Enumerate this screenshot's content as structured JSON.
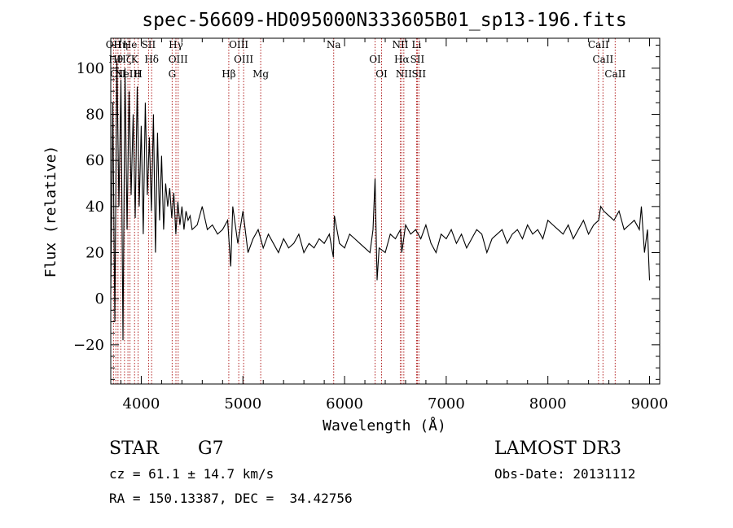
{
  "chart_data": {
    "type": "line",
    "title": "spec-56609-HD095000N333605B01_sp13-196.fits",
    "xlabel": "Wavelength (Å)",
    "ylabel": "Flux (relative)",
    "xlim": [
      3700,
      9100
    ],
    "ylim": [
      -37,
      113
    ],
    "xticks": [
      4000,
      5000,
      6000,
      7000,
      8000,
      9000
    ],
    "yticks": [
      -20,
      0,
      20,
      40,
      60,
      80,
      100
    ],
    "series": [
      {
        "name": "flux",
        "x": [
          3700,
          3720,
          3740,
          3760,
          3780,
          3800,
          3820,
          3840,
          3860,
          3880,
          3900,
          3920,
          3940,
          3960,
          3980,
          4000,
          4020,
          4040,
          4060,
          4080,
          4100,
          4120,
          4140,
          4160,
          4180,
          4200,
          4220,
          4240,
          4260,
          4280,
          4300,
          4320,
          4340,
          4360,
          4380,
          4400,
          4420,
          4440,
          4460,
          4480,
          4500,
          4550,
          4600,
          4650,
          4700,
          4750,
          4800,
          4850,
          4880,
          4900,
          4950,
          5000,
          5050,
          5100,
          5150,
          5200,
          5250,
          5300,
          5350,
          5400,
          5450,
          5500,
          5550,
          5600,
          5650,
          5700,
          5750,
          5800,
          5850,
          5890,
          5900,
          5950,
          6000,
          6050,
          6100,
          6150,
          6200,
          6250,
          6280,
          6300,
          6320,
          6340,
          6400,
          6450,
          6500,
          6550,
          6563,
          6600,
          6650,
          6700,
          6750,
          6800,
          6850,
          6900,
          6950,
          7000,
          7050,
          7100,
          7150,
          7200,
          7250,
          7300,
          7350,
          7400,
          7450,
          7500,
          7550,
          7600,
          7650,
          7700,
          7750,
          7800,
          7850,
          7900,
          7950,
          8000,
          8050,
          8100,
          8150,
          8200,
          8250,
          8300,
          8350,
          8400,
          8450,
          8500,
          8520,
          8550,
          8600,
          8650,
          8700,
          8750,
          8800,
          8850,
          8900,
          8920,
          8950,
          8980,
          9000
        ],
        "y": [
          2,
          85,
          -10,
          104,
          40,
          95,
          -18,
          100,
          30,
          90,
          45,
          80,
          35,
          92,
          40,
          75,
          28,
          85,
          45,
          70,
          38,
          80,
          20,
          72,
          34,
          62,
          30,
          50,
          40,
          48,
          35,
          46,
          28,
          42,
          32,
          40,
          30,
          38,
          34,
          36,
          30,
          32,
          40,
          30,
          32,
          28,
          30,
          34,
          14,
          40,
          24,
          38,
          20,
          26,
          30,
          22,
          28,
          24,
          20,
          26,
          22,
          24,
          28,
          20,
          24,
          22,
          26,
          24,
          28,
          18,
          36,
          24,
          22,
          28,
          26,
          24,
          22,
          20,
          30,
          52,
          8,
          22,
          20,
          28,
          26,
          30,
          20,
          32,
          28,
          30,
          26,
          32,
          24,
          20,
          28,
          26,
          30,
          24,
          28,
          22,
          26,
          30,
          28,
          20,
          26,
          28,
          30,
          24,
          28,
          30,
          26,
          32,
          28,
          30,
          26,
          34,
          32,
          30,
          28,
          32,
          26,
          30,
          34,
          28,
          32,
          34,
          40,
          38,
          36,
          34,
          38,
          30,
          32,
          34,
          30,
          40,
          20,
          30,
          8
        ]
      }
    ],
    "lines": [
      {
        "wl": 3727,
        "label": "OII"
      },
      {
        "wl": 3750,
        "label": "Hθ"
      },
      {
        "wl": 3771,
        "label": "OII"
      },
      {
        "wl": 3798,
        "label": "Hη"
      },
      {
        "wl": 3835,
        "label": "Hζ"
      },
      {
        "wl": 3869,
        "label": "NeIII"
      },
      {
        "wl": 3889,
        "label": "He"
      },
      {
        "wl": 3934,
        "label": "K"
      },
      {
        "wl": 3969,
        "label": "H"
      },
      {
        "wl": 4072,
        "label": "SII"
      },
      {
        "wl": 4102,
        "label": "Hδ"
      },
      {
        "wl": 4304,
        "label": "G"
      },
      {
        "wl": 4341,
        "label": "Hγ"
      },
      {
        "wl": 4363,
        "label": "OIII"
      },
      {
        "wl": 4861,
        "label": "Hβ"
      },
      {
        "wl": 4959,
        "label": "OIII"
      },
      {
        "wl": 5007,
        "label": "OIII"
      },
      {
        "wl": 5175,
        "label": "Mg"
      },
      {
        "wl": 5893,
        "label": "Na"
      },
      {
        "wl": 6300,
        "label": "OI"
      },
      {
        "wl": 6364,
        "label": "OI"
      },
      {
        "wl": 6548,
        "label": "NII"
      },
      {
        "wl": 6563,
        "label": "Hα"
      },
      {
        "wl": 6583,
        "label": "NII"
      },
      {
        "wl": 6708,
        "label": "Li"
      },
      {
        "wl": 6716,
        "label": "SII"
      },
      {
        "wl": 6731,
        "label": "SII"
      },
      {
        "wl": 8498,
        "label": "CaII"
      },
      {
        "wl": 8542,
        "label": "CaII"
      },
      {
        "wl": 8662,
        "label": "CaII"
      }
    ]
  },
  "info": {
    "class": "STAR",
    "subclass": "G7",
    "survey": "LAMOST DR3",
    "cz": "cz = 61.1 ± 14.7 km/s",
    "obsdate": "Obs-Date: 20131112",
    "radec": "RA = 150.13387, DEC =  34.42756"
  }
}
